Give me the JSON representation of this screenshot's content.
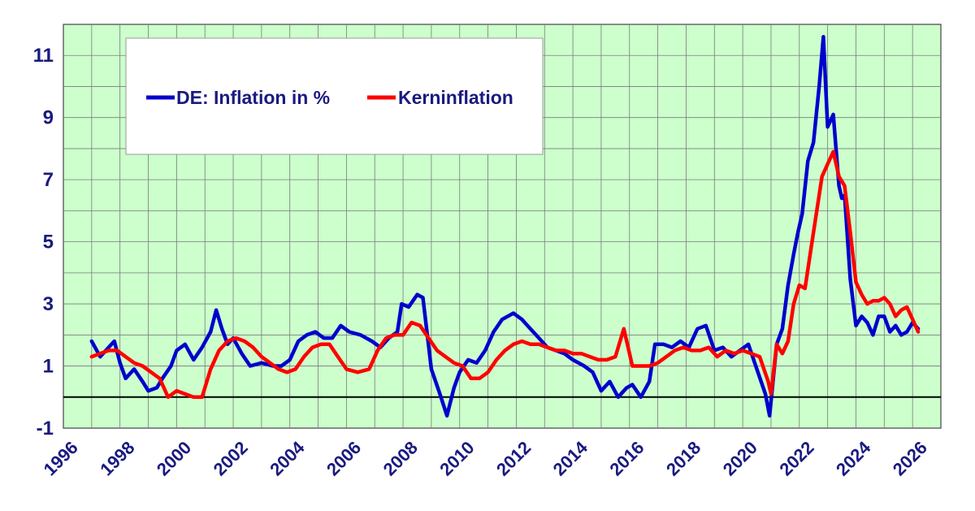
{
  "chart_data": {
    "type": "line",
    "title": "",
    "xlabel": "",
    "ylabel": "",
    "xlim": [
      1996,
      2027
    ],
    "ylim": [
      -1,
      12
    ],
    "y_ticks": [
      -1,
      1,
      3,
      5,
      7,
      9,
      11
    ],
    "x_ticks": [
      1996,
      1998,
      2000,
      2002,
      2004,
      2006,
      2008,
      2010,
      2012,
      2014,
      2016,
      2018,
      2020,
      2022,
      2024,
      2026
    ],
    "grid": true,
    "zero_line": true,
    "plot_background": "#ccffcc",
    "legend_position": "top-left",
    "series": [
      {
        "name": "DE: Inflation in %",
        "color": "#0000cc",
        "x": [
          1997.0,
          1997.3,
          1997.6,
          1997.8,
          1998.0,
          1998.2,
          1998.5,
          1998.8,
          1999.0,
          1999.3,
          1999.5,
          1999.8,
          2000.0,
          2000.3,
          2000.6,
          2000.9,
          2001.2,
          2001.4,
          2001.6,
          2001.8,
          2002.0,
          2002.3,
          2002.6,
          2003.0,
          2003.4,
          2003.7,
          2004.0,
          2004.3,
          2004.6,
          2004.9,
          2005.2,
          2005.5,
          2005.8,
          2006.1,
          2006.5,
          2006.9,
          2007.2,
          2007.5,
          2007.8,
          2007.95,
          2008.2,
          2008.5,
          2008.7,
          2009.0,
          2009.3,
          2009.55,
          2009.8,
          2010.0,
          2010.3,
          2010.6,
          2010.9,
          2011.2,
          2011.5,
          2011.9,
          2012.2,
          2012.5,
          2012.8,
          2013.1,
          2013.4,
          2013.7,
          2014.0,
          2014.4,
          2014.7,
          2015.0,
          2015.3,
          2015.6,
          2015.9,
          2016.1,
          2016.4,
          2016.7,
          2016.9,
          2017.2,
          2017.5,
          2017.8,
          2018.1,
          2018.4,
          2018.7,
          2019.0,
          2019.3,
          2019.6,
          2019.9,
          2020.2,
          2020.5,
          2020.8,
          2020.95,
          2021.2,
          2021.4,
          2021.6,
          2021.8,
          2021.95,
          2022.1,
          2022.3,
          2022.5,
          2022.7,
          2022.85,
          2023.0,
          2023.2,
          2023.4,
          2023.5,
          2023.6,
          2023.8,
          2024.0,
          2024.2,
          2024.4,
          2024.6,
          2024.8,
          2025.0,
          2025.2,
          2025.4,
          2025.6,
          2025.8,
          2026.0,
          2026.2
        ],
        "values": [
          1.8,
          1.3,
          1.6,
          1.8,
          1.1,
          0.6,
          0.9,
          0.5,
          0.2,
          0.3,
          0.6,
          1.0,
          1.5,
          1.7,
          1.2,
          1.6,
          2.1,
          2.8,
          2.2,
          1.7,
          1.9,
          1.4,
          1.0,
          1.1,
          1.0,
          1.0,
          1.2,
          1.8,
          2.0,
          2.1,
          1.9,
          1.9,
          2.3,
          2.1,
          2.0,
          1.8,
          1.6,
          1.9,
          2.1,
          3.0,
          2.9,
          3.3,
          3.2,
          0.9,
          0.1,
          -0.6,
          0.3,
          0.8,
          1.2,
          1.1,
          1.5,
          2.1,
          2.5,
          2.7,
          2.5,
          2.2,
          1.9,
          1.6,
          1.5,
          1.4,
          1.2,
          1.0,
          0.8,
          0.2,
          0.5,
          0.0,
          0.3,
          0.4,
          0.0,
          0.5,
          1.7,
          1.7,
          1.6,
          1.8,
          1.6,
          2.2,
          2.3,
          1.5,
          1.6,
          1.3,
          1.5,
          1.7,
          0.9,
          0.1,
          -0.6,
          1.7,
          2.2,
          3.6,
          4.6,
          5.3,
          5.9,
          7.6,
          8.2,
          10.0,
          11.6,
          8.7,
          9.1,
          6.8,
          6.4,
          6.5,
          3.8,
          2.3,
          2.6,
          2.4,
          2.0,
          2.6,
          2.6,
          2.1,
          2.3,
          2.0,
          2.1,
          2.4,
          2.2
        ]
      },
      {
        "name": "Kerninflation",
        "color": "#ff0000",
        "x": [
          1997.0,
          1997.3,
          1997.6,
          1997.9,
          1998.2,
          1998.5,
          1998.8,
          1999.1,
          1999.4,
          1999.7,
          2000.0,
          2000.3,
          2000.6,
          2000.9,
          2001.2,
          2001.5,
          2001.8,
          2002.1,
          2002.4,
          2002.7,
          2003.0,
          2003.3,
          2003.6,
          2003.9,
          2004.2,
          2004.5,
          2004.8,
          2005.1,
          2005.4,
          2005.7,
          2006.0,
          2006.4,
          2006.8,
          2007.1,
          2007.4,
          2007.7,
          2008.0,
          2008.3,
          2008.6,
          2008.9,
          2009.2,
          2009.5,
          2009.8,
          2010.1,
          2010.4,
          2010.7,
          2011.0,
          2011.3,
          2011.6,
          2011.9,
          2012.2,
          2012.5,
          2012.8,
          2013.1,
          2013.4,
          2013.7,
          2014.0,
          2014.3,
          2014.6,
          2014.9,
          2015.2,
          2015.5,
          2015.8,
          2016.1,
          2016.4,
          2016.7,
          2017.0,
          2017.3,
          2017.6,
          2017.9,
          2018.2,
          2018.5,
          2018.8,
          2019.1,
          2019.4,
          2019.7,
          2020.0,
          2020.3,
          2020.6,
          2020.9,
          2021.0,
          2021.2,
          2021.4,
          2021.6,
          2021.8,
          2022.0,
          2022.2,
          2022.4,
          2022.6,
          2022.8,
          2023.0,
          2023.2,
          2023.4,
          2023.6,
          2023.8,
          2024.0,
          2024.2,
          2024.4,
          2024.6,
          2024.8,
          2025.0,
          2025.2,
          2025.4,
          2025.6,
          2025.8,
          2026.0,
          2026.2
        ],
        "values": [
          1.3,
          1.4,
          1.5,
          1.5,
          1.3,
          1.1,
          1.0,
          0.8,
          0.6,
          0.0,
          0.2,
          0.1,
          0.0,
          0.0,
          0.9,
          1.5,
          1.8,
          1.9,
          1.8,
          1.6,
          1.3,
          1.1,
          0.9,
          0.8,
          0.9,
          1.3,
          1.6,
          1.7,
          1.7,
          1.3,
          0.9,
          0.8,
          0.9,
          1.5,
          1.9,
          2.0,
          2.0,
          2.4,
          2.3,
          1.9,
          1.5,
          1.3,
          1.1,
          1.0,
          0.6,
          0.6,
          0.8,
          1.2,
          1.5,
          1.7,
          1.8,
          1.7,
          1.7,
          1.6,
          1.5,
          1.5,
          1.4,
          1.4,
          1.3,
          1.2,
          1.2,
          1.3,
          2.2,
          1.0,
          1.0,
          1.0,
          1.1,
          1.3,
          1.5,
          1.6,
          1.5,
          1.5,
          1.6,
          1.3,
          1.5,
          1.4,
          1.5,
          1.4,
          1.3,
          0.5,
          0.1,
          1.7,
          1.4,
          1.8,
          3.0,
          3.6,
          3.5,
          4.7,
          5.9,
          7.1,
          7.5,
          7.9,
          7.1,
          6.8,
          5.3,
          3.7,
          3.3,
          3.0,
          3.1,
          3.1,
          3.2,
          3.0,
          2.6,
          2.8,
          2.9,
          2.5,
          2.1
        ]
      }
    ]
  }
}
